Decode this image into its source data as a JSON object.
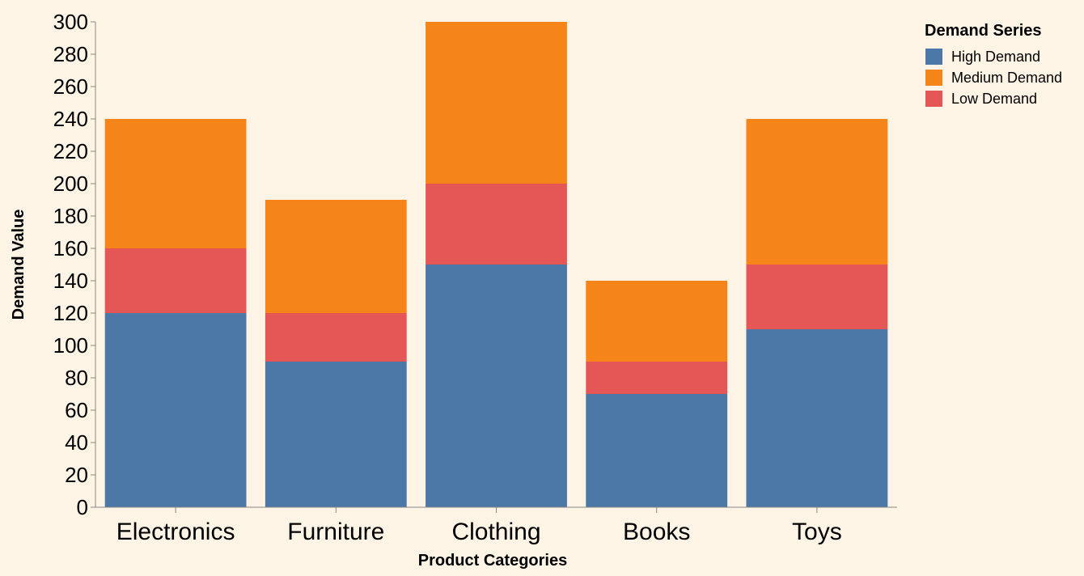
{
  "chart_data": {
    "type": "bar",
    "stacked": true,
    "categories": [
      "Electronics",
      "Furniture",
      "Clothing",
      "Books",
      "Toys"
    ],
    "series": [
      {
        "name": "High Demand",
        "color": "#4c78a8",
        "values": [
          120,
          90,
          150,
          70,
          110
        ]
      },
      {
        "name": "Low Demand",
        "color": "#e45756",
        "values": [
          40,
          30,
          50,
          20,
          40
        ]
      },
      {
        "name": "Medium Demand",
        "color": "#f58518",
        "values": [
          80,
          70,
          100,
          50,
          90
        ]
      }
    ],
    "xlabel": "Product Categories",
    "ylabel": "Demand Value",
    "ylim": [
      0,
      300
    ],
    "yticks": [
      0,
      20,
      40,
      60,
      80,
      100,
      120,
      140,
      160,
      180,
      200,
      220,
      240,
      260,
      280,
      300
    ],
    "legend": {
      "title": "Demand Series",
      "position": "top-right",
      "entries": [
        {
          "label": "High Demand",
          "color": "#4c78a8"
        },
        {
          "label": "Medium Demand",
          "color": "#f58518"
        },
        {
          "label": "Low Demand",
          "color": "#e45756"
        }
      ]
    },
    "background": "#fdf4e5",
    "axis_color": "#888888"
  }
}
